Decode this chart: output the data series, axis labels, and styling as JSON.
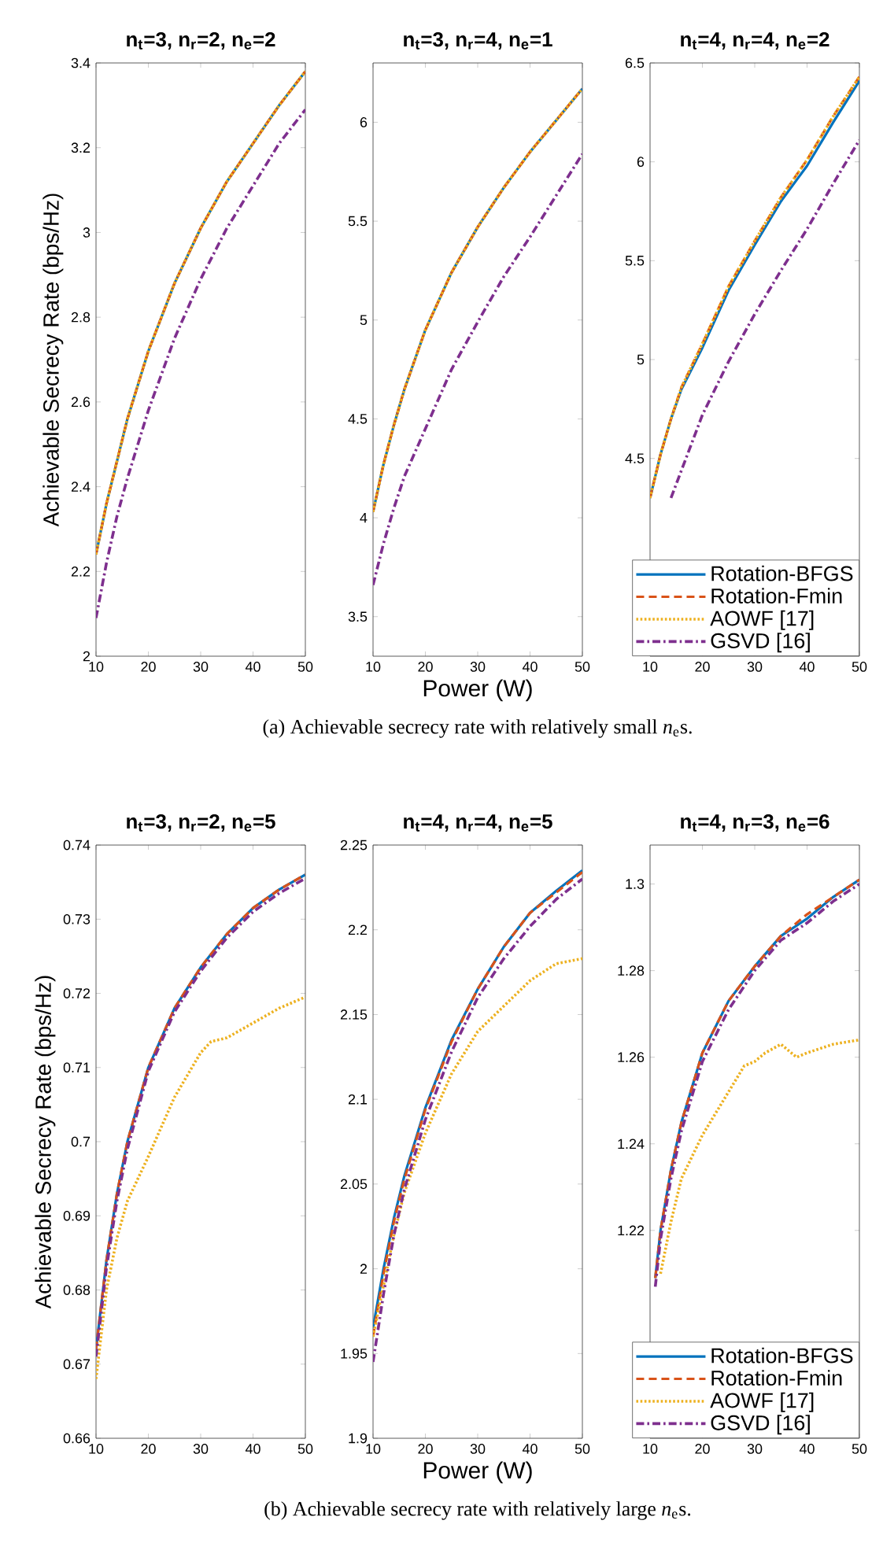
{
  "chart_data": [
    {
      "type": "line",
      "title": "n$_{t}$=3, n$_{r}$=2, n$_{e}$=2",
      "ylabel": "Achievable Secrecy Rate (bps/Hz)",
      "x": [
        10,
        12,
        14,
        16,
        20,
        25,
        30,
        35,
        40,
        45,
        50
      ],
      "xlim": [
        10,
        50
      ],
      "xticks": [
        10,
        20,
        30,
        40,
        50
      ],
      "ylim": [
        2,
        3.4
      ],
      "yticks": [
        2,
        2.2,
        2.4,
        2.6,
        2.8,
        3,
        3.2,
        3.4
      ],
      "series": [
        {
          "color": "#0072bd",
          "line_style": "solid",
          "values": [
            2.24,
            2.36,
            2.46,
            2.56,
            2.72,
            2.88,
            3.01,
            3.12,
            3.21,
            3.3,
            3.38
          ]
        },
        {
          "color": "#d95319",
          "line_style": "dashed",
          "values": [
            2.24,
            2.36,
            2.46,
            2.56,
            2.72,
            2.88,
            3.01,
            3.12,
            3.21,
            3.3,
            3.38
          ]
        },
        {
          "color": "#edb120",
          "line_style": "dotted",
          "values": [
            2.24,
            2.36,
            2.46,
            2.56,
            2.72,
            2.88,
            3.01,
            3.12,
            3.21,
            3.3,
            3.38
          ]
        },
        {
          "color": "#7e2f8e",
          "line_style": "dashdot",
          "values": [
            2.09,
            2.22,
            2.33,
            2.42,
            2.58,
            2.75,
            2.89,
            3.01,
            3.11,
            3.21,
            3.29
          ]
        }
      ]
    },
    {
      "type": "line",
      "title": "n$_{t}$=3, n$_{r}$=4, n$_{e}$=1",
      "xlabel": "Power (W)",
      "annotations": [
        "(a) Achievable secrecy rate with relatively small *n*$_{e}$s."
      ],
      "x": [
        10,
        12,
        14,
        16,
        20,
        25,
        30,
        35,
        40,
        45,
        50
      ],
      "xlim": [
        10,
        50
      ],
      "xticks": [
        10,
        20,
        30,
        40,
        50
      ],
      "ylim": [
        3.3,
        6.3
      ],
      "yticks": [
        3.5,
        4,
        4.5,
        5,
        5.5,
        6
      ],
      "series": [
        {
          "color": "#0072bd",
          "line_style": "solid",
          "values": [
            4.03,
            4.27,
            4.47,
            4.65,
            4.95,
            5.24,
            5.47,
            5.67,
            5.85,
            6.01,
            6.17
          ]
        },
        {
          "color": "#d95319",
          "line_style": "dashed",
          "values": [
            4.03,
            4.27,
            4.47,
            4.65,
            4.95,
            5.24,
            5.47,
            5.67,
            5.85,
            6.01,
            6.17
          ]
        },
        {
          "color": "#edb120",
          "line_style": "dotted",
          "values": [
            4.03,
            4.27,
            4.47,
            4.65,
            4.95,
            5.24,
            5.47,
            5.67,
            5.85,
            6.01,
            6.17
          ]
        },
        {
          "color": "#7e2f8e",
          "line_style": "dashdot",
          "values": [
            3.66,
            3.87,
            4.05,
            4.21,
            4.45,
            4.75,
            4.99,
            5.22,
            5.42,
            5.63,
            5.84
          ]
        }
      ]
    },
    {
      "type": "line",
      "title": "n$_{t}$=4, n$_{r}$=4, n$_{e}$=2",
      "legend": "bottom right",
      "x": [
        10,
        12,
        14,
        16,
        20,
        25,
        30,
        35,
        40,
        45,
        50
      ],
      "xlim": [
        10,
        50
      ],
      "xticks": [
        10,
        20,
        30,
        40,
        50
      ],
      "ylim": [
        3.5,
        6.5
      ],
      "yticks": [
        4.5,
        5,
        5.5,
        6,
        6.5
      ],
      "series": [
        {
          "name": "Rotation-BFGS",
          "color": "#0072bd",
          "line_style": "solid",
          "values": [
            4.3,
            4.52,
            4.7,
            4.85,
            5.06,
            5.35,
            5.58,
            5.8,
            5.98,
            6.2,
            6.41
          ]
        },
        {
          "name": "Rotation-Fmin",
          "color": "#d95319",
          "line_style": "dashed",
          "values": [
            4.3,
            4.52,
            4.7,
            4.86,
            5.08,
            5.37,
            5.6,
            5.82,
            6.01,
            6.23,
            6.43
          ]
        },
        {
          "name": "AOWF [17]",
          "color": "#edb120",
          "line_style": "dotted",
          "values": [
            4.3,
            4.52,
            4.7,
            4.86,
            5.08,
            5.37,
            5.6,
            5.82,
            6.01,
            6.23,
            6.43
          ]
        },
        {
          "name": "GSVD [16]",
          "color": "#7e2f8e",
          "line_style": "dashdot",
          "values": [
            null,
            null,
            4.3,
            4.44,
            4.72,
            4.99,
            5.23,
            5.45,
            5.66,
            5.89,
            6.11
          ]
        }
      ]
    },
    {
      "type": "line",
      "title": "n$_{t}$=3, n$_{r}$=2, n$_{e}$=5",
      "ylabel": "Achievable Secrecy Rate (bps/Hz)",
      "x": [
        10,
        12,
        14,
        16,
        20,
        25,
        30,
        35,
        40,
        45,
        50
      ],
      "xlim": [
        10,
        50
      ],
      "xticks": [
        10,
        20,
        30,
        40,
        50
      ],
      "ylim": [
        0.66,
        0.74
      ],
      "yticks": [
        0.66,
        0.67,
        0.68,
        0.69,
        0.7,
        0.71,
        0.72,
        0.73,
        0.74
      ],
      "series": [
        {
          "color": "#0072bd",
          "line_style": "solid",
          "values": [
            0.672,
            0.684,
            0.693,
            0.7,
            0.71,
            0.718,
            0.7235,
            0.728,
            0.7315,
            0.734,
            0.736
          ]
        },
        {
          "color": "#d95319",
          "line_style": "dashed",
          "values": [
            0.672,
            0.684,
            0.693,
            0.7,
            0.71,
            0.718,
            0.7235,
            0.728,
            0.7315,
            0.734,
            0.736
          ]
        },
        {
          "color": "#edb120",
          "line_style": "dotted",
          "x": [
            10,
            12,
            14,
            16,
            20,
            25,
            30,
            32,
            35,
            40,
            45,
            50
          ],
          "values": [
            0.668,
            0.68,
            0.687,
            0.692,
            0.698,
            0.706,
            0.712,
            0.7135,
            0.714,
            0.716,
            0.718,
            0.7195
          ]
        },
        {
          "color": "#7e2f8e",
          "line_style": "dashdot",
          "values": [
            0.671,
            0.683,
            0.692,
            0.699,
            0.7095,
            0.7175,
            0.723,
            0.7275,
            0.731,
            0.7335,
            0.7355
          ]
        }
      ]
    },
    {
      "type": "line",
      "title": "n$_{t}$=4, n$_{r}$=4, n$_{e}$=5",
      "xlabel": "Power (W)",
      "annotations": [
        "(b) Achievable secrecy rate with relatively large *n*$_{e}$s."
      ],
      "x": [
        10,
        12,
        14,
        16,
        20,
        25,
        30,
        35,
        40,
        45,
        50
      ],
      "xlim": [
        10,
        50
      ],
      "xticks": [
        10,
        20,
        30,
        40,
        50
      ],
      "ylim": [
        1.9,
        2.25
      ],
      "yticks": [
        1.9,
        1.95,
        2,
        2.05,
        2.1,
        2.15,
        2.2,
        2.25
      ],
      "series": [
        {
          "color": "#0072bd",
          "line_style": "solid",
          "values": [
            1.965,
            2.0,
            2.03,
            2.055,
            2.095,
            2.135,
            2.165,
            2.19,
            2.21,
            2.223,
            2.235
          ]
        },
        {
          "color": "#d95319",
          "line_style": "dashed",
          "values": [
            1.96,
            1.997,
            2.028,
            2.053,
            2.094,
            2.134,
            2.165,
            2.19,
            2.21,
            2.222,
            2.234
          ]
        },
        {
          "color": "#edb120",
          "line_style": "dotted",
          "values": [
            1.96,
            1.99,
            2.02,
            2.045,
            2.08,
            2.115,
            2.14,
            2.155,
            2.17,
            2.18,
            2.183
          ]
        },
        {
          "color": "#7e2f8e",
          "line_style": "dashdot",
          "values": [
            1.945,
            1.985,
            2.02,
            2.047,
            2.088,
            2.128,
            2.16,
            2.183,
            2.202,
            2.218,
            2.23
          ]
        }
      ]
    },
    {
      "type": "line",
      "title": "n$_{t}$=4, n$_{r}$=3, n$_{e}$=6",
      "legend": "bottom right",
      "x": [
        11,
        12,
        14,
        16,
        20,
        25,
        30,
        35,
        40,
        45,
        50
      ],
      "xlim": [
        10,
        50
      ],
      "xticks": [
        10,
        20,
        30,
        40,
        50
      ],
      "ylim": [
        1.172,
        1.309
      ],
      "yticks": [
        1.22,
        1.24,
        1.26,
        1.28,
        1.3
      ],
      "series": [
        {
          "name": "Rotation-BFGS",
          "color": "#0072bd",
          "line_style": "solid",
          "values": [
            1.209,
            1.22,
            1.234,
            1.245,
            1.261,
            1.273,
            1.281,
            1.288,
            1.292,
            1.297,
            1.301
          ]
        },
        {
          "name": "Rotation-Fmin",
          "color": "#d95319",
          "line_style": "dashed",
          "values": [
            1.209,
            1.22,
            1.234,
            1.245,
            1.261,
            1.273,
            1.281,
            1.288,
            1.293,
            1.297,
            1.301
          ]
        },
        {
          "name": "AOWF [17]",
          "color": "#edb120",
          "line_style": "dotted",
          "x": [
            12,
            14,
            16,
            20,
            25,
            28,
            30,
            32,
            35,
            38,
            40,
            45,
            50
          ],
          "values": [
            1.21,
            1.222,
            1.232,
            1.242,
            1.252,
            1.258,
            1.259,
            1.261,
            1.263,
            1.26,
            1.261,
            1.263,
            1.264
          ]
        },
        {
          "name": "GSVD [16]",
          "color": "#7e2f8e",
          "line_style": "dashdot",
          "values": [
            1.207,
            1.218,
            1.232,
            1.243,
            1.259,
            1.271,
            1.28,
            1.287,
            1.291,
            1.296,
            1.3
          ]
        }
      ]
    }
  ]
}
